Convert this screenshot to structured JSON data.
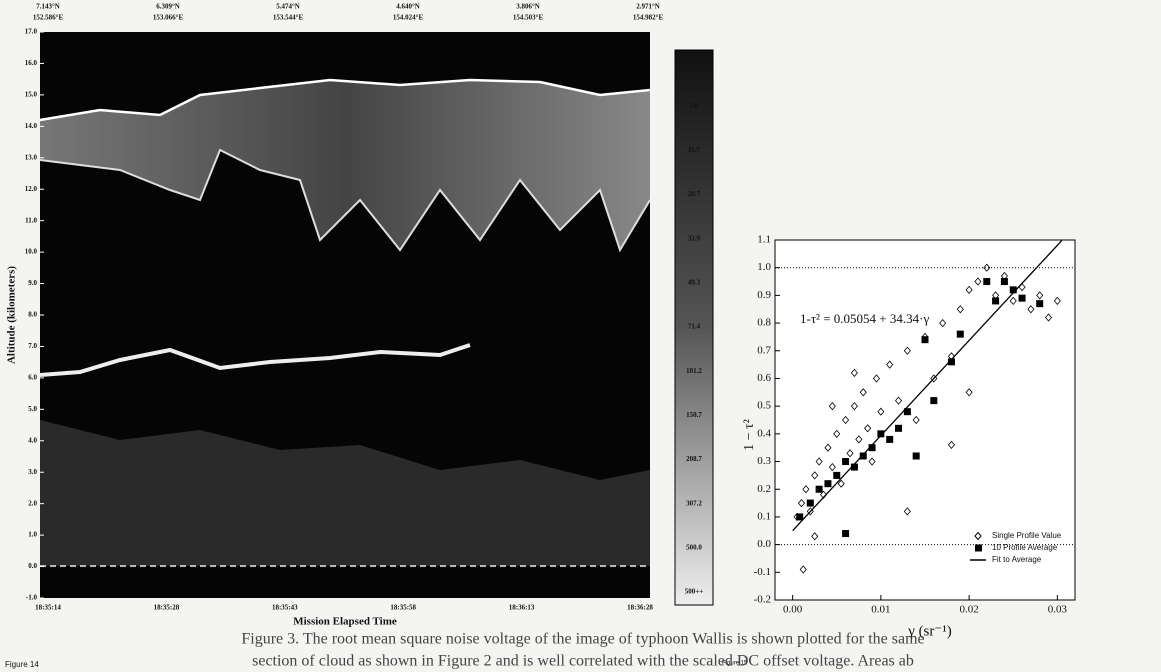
{
  "chart_data": [
    {
      "type": "image",
      "label": "Figure 14",
      "y_label": "Altitude (kilometers)",
      "x_label": "Mission Elapsed Time",
      "top_labels": [
        [
          "7.143°N",
          "152.586°E"
        ],
        [
          "6.309°N",
          "153.066°E"
        ],
        [
          "5.474°N",
          "153.544°E"
        ],
        [
          "4.640°N",
          "154.024°E"
        ],
        [
          "3.806°N",
          "154.503°E"
        ],
        [
          "2.971°N",
          "154.982°E"
        ]
      ],
      "categories": [
        "18:35:14",
        "18:35:28",
        "18:35:43",
        "18:35:58",
        "18:36:13",
        "18:36:28"
      ],
      "ylim": [
        -1,
        17
      ],
      "yticks": [
        {
          "value": -1,
          "label": "-1.0"
        },
        {
          "value": 0,
          "label": "0.0"
        },
        {
          "value": 1,
          "label": "1.0"
        },
        {
          "value": 2,
          "label": "2.0"
        },
        {
          "value": 3,
          "label": "3.0"
        },
        {
          "value": 4,
          "label": "4.0"
        },
        {
          "value": 5,
          "label": "5.0"
        },
        {
          "value": 6,
          "label": "6.0"
        },
        {
          "value": 7,
          "label": "7.0"
        },
        {
          "value": 8,
          "label": "8.0"
        },
        {
          "value": 9,
          "label": "9.0"
        },
        {
          "value": 10,
          "label": "10.0"
        },
        {
          "value": 11,
          "label": "11.0"
        },
        {
          "value": 12,
          "label": "12.0"
        },
        {
          "value": 13,
          "label": "13.0"
        },
        {
          "value": 14,
          "label": "14.0"
        },
        {
          "value": 15,
          "label": "15.0"
        },
        {
          "value": 16,
          "label": "16.0"
        },
        {
          "value": 17,
          "label": "17.0"
        }
      ],
      "colorbar_labels": [
        "0.0",
        "5.0",
        "11.7",
        "20.7",
        "32.9",
        "49.3",
        "71.4",
        "101.2",
        "150.7",
        "208.7",
        "307.2",
        "500.0",
        "500++"
      ]
    },
    {
      "type": "scatter",
      "label": "Figure 15",
      "equation": "1-τ² = 0.05054 + 34.34·γ",
      "y_label": "1 − τ²",
      "x_label": "γ (sr⁻¹)",
      "xlim": [
        -0.002,
        0.032
      ],
      "ylim": [
        -0.2,
        1.1
      ],
      "xticks": [
        {
          "value": 0,
          "label": "0.00"
        },
        0.01,
        0.02,
        0.03
      ],
      "yticks": [
        -0.2,
        -0.1,
        {
          "value": 0,
          "label": "0.0"
        },
        0.1,
        0.2,
        0.3,
        0.4,
        0.5,
        0.6,
        0.7,
        0.8,
        0.9,
        {
          "value": 1,
          "label": "1.0"
        },
        1.1
      ],
      "reference_lines": [
        0,
        1
      ],
      "series": [
        {
          "name": "Single Profile Value",
          "marker": "diamond",
          "x": [
            0.0005,
            0.001,
            0.0015,
            0.002,
            0.0025,
            0.003,
            0.0035,
            0.004,
            0.0045,
            0.005,
            0.0055,
            0.006,
            0.0065,
            0.007,
            0.0075,
            0.008,
            0.0085,
            0.009,
            0.0095,
            0.01,
            0.011,
            0.012,
            0.013,
            0.014,
            0.015,
            0.016,
            0.017,
            0.018,
            0.019,
            0.02,
            0.021,
            0.022,
            0.023,
            0.024,
            0.025,
            0.026,
            0.027,
            0.028,
            0.029,
            0.03,
            0.0012,
            0.0025,
            0.013,
            0.018,
            0.02,
            0.0045,
            0.007
          ],
          "values": [
            0.1,
            0.15,
            0.2,
            0.12,
            0.25,
            0.3,
            0.18,
            0.35,
            0.28,
            0.4,
            0.22,
            0.45,
            0.33,
            0.5,
            0.38,
            0.55,
            0.42,
            0.3,
            0.6,
            0.48,
            0.65,
            0.52,
            0.7,
            0.45,
            0.75,
            0.6,
            0.8,
            0.68,
            0.85,
            0.92,
            0.95,
            1.0,
            0.9,
            0.97,
            0.88,
            0.93,
            0.85,
            0.9,
            0.82,
            0.88,
            -0.09,
            0.03,
            0.12,
            0.36,
            0.55,
            0.5,
            0.62
          ]
        },
        {
          "name": "10 Profile Average",
          "marker": "square",
          "x": [
            0.0008,
            0.002,
            0.003,
            0.004,
            0.005,
            0.006,
            0.006,
            0.007,
            0.008,
            0.009,
            0.01,
            0.011,
            0.012,
            0.013,
            0.014,
            0.015,
            0.016,
            0.018,
            0.019,
            0.022,
            0.023,
            0.024,
            0.025,
            0.026,
            0.028
          ],
          "values": [
            0.1,
            0.15,
            0.2,
            0.22,
            0.25,
            0.04,
            0.3,
            0.28,
            0.32,
            0.35,
            0.4,
            0.38,
            0.42,
            0.48,
            0.32,
            0.74,
            0.52,
            0.66,
            0.76,
            0.95,
            0.88,
            0.95,
            0.92,
            0.89,
            0.87
          ]
        },
        {
          "name": "Fit to Average",
          "marker": "line",
          "x": [
            0,
            0.0305
          ],
          "values": [
            0.0505,
            1.098
          ]
        }
      ]
    }
  ],
  "text": [
    "Figure 3. The root mean square noise voltage of the image of typhoon Wallis is shown plotted for the same",
    "section of cloud as shown in Figure 2 and is well correlated with the scaled DC offset voltage. Areas ab"
  ]
}
